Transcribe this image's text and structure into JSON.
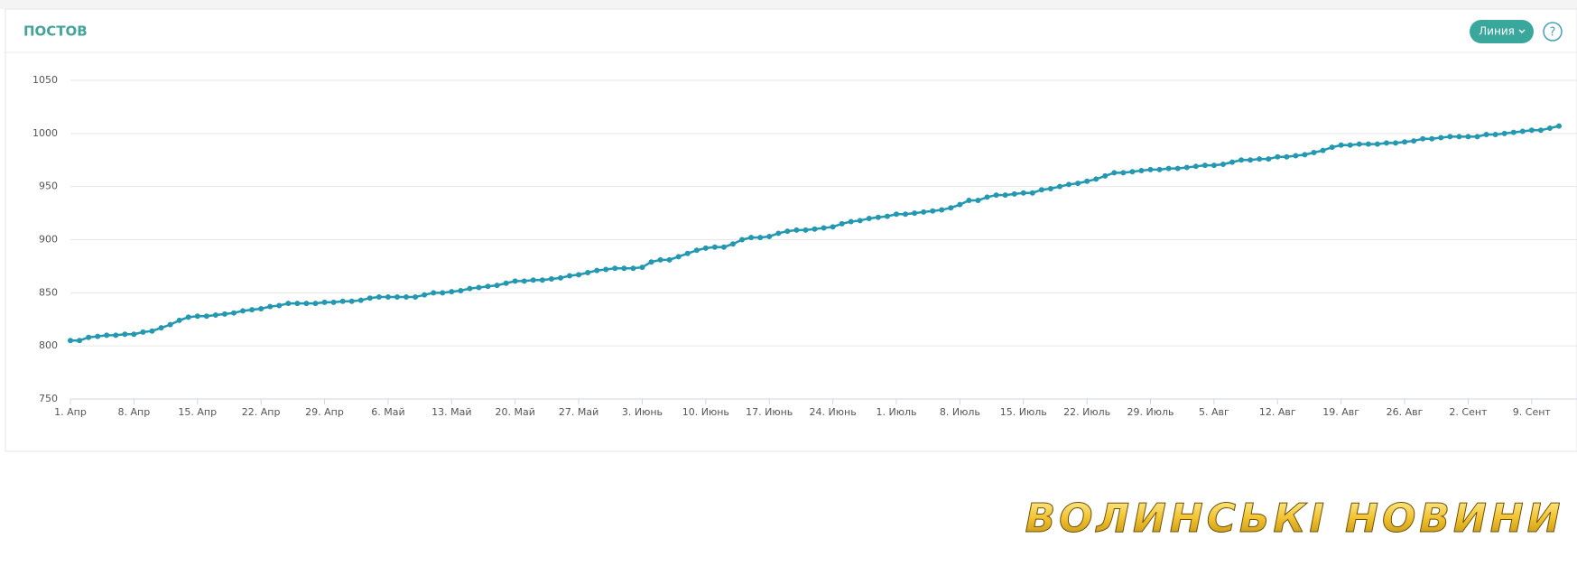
{
  "chart_data": {
    "type": "line",
    "title": "ПОСТОВ",
    "categories": [
      "1. Апр",
      null,
      null,
      null,
      null,
      null,
      null,
      "8. Апр",
      null,
      null,
      null,
      null,
      null,
      null,
      "15. Апр",
      null,
      null,
      null,
      null,
      null,
      null,
      "22. Апр",
      null,
      null,
      null,
      null,
      null,
      null,
      "29. Апр",
      null,
      null,
      null,
      null,
      null,
      null,
      "6. Май",
      null,
      null,
      null,
      null,
      null,
      null,
      "13. Май",
      null,
      null,
      null,
      null,
      null,
      null,
      "20. Май",
      null,
      null,
      null,
      null,
      null,
      null,
      "27. Май",
      null,
      null,
      null,
      null,
      null,
      null,
      "3. Июнь",
      null,
      null,
      null,
      null,
      null,
      null,
      "10. Июнь",
      null,
      null,
      null,
      null,
      null,
      null,
      "17. Июнь",
      null,
      null,
      null,
      null,
      null,
      null,
      "24. Июнь",
      null,
      null,
      null,
      null,
      null,
      null,
      "1. Июль",
      null,
      null,
      null,
      null,
      null,
      null,
      "8. Июль",
      null,
      null,
      null,
      null,
      null,
      null,
      "15. Июль",
      null,
      null,
      null,
      null,
      null,
      null,
      "22. Июль",
      null,
      null,
      null,
      null,
      null,
      null,
      "29. Июль",
      null,
      null,
      null,
      null,
      null,
      null,
      "5. Авг",
      null,
      null,
      null,
      null,
      null,
      null,
      "12. Авг",
      null,
      null,
      null,
      null,
      null,
      null,
      "19. Авг",
      null,
      null,
      null,
      null,
      null,
      null,
      "26. Авг",
      null,
      null,
      null,
      null,
      null,
      null,
      "2. Сент",
      null,
      null,
      null,
      null,
      null,
      null,
      "9. Сент",
      null,
      null,
      null
    ],
    "values": [
      805,
      805,
      808,
      809,
      810,
      810,
      811,
      811,
      813,
      814,
      817,
      820,
      824,
      827,
      828,
      828,
      829,
      830,
      831,
      833,
      834,
      835,
      837,
      838,
      840,
      840,
      840,
      840,
      841,
      841,
      842,
      842,
      843,
      845,
      846,
      846,
      846,
      846,
      846,
      848,
      850,
      850,
      851,
      852,
      854,
      855,
      856,
      857,
      859,
      861,
      861,
      862,
      862,
      863,
      864,
      866,
      867,
      869,
      871,
      872,
      873,
      873,
      873,
      874,
      879,
      881,
      881,
      884,
      887,
      890,
      892,
      893,
      893,
      896,
      900,
      902,
      902,
      903,
      906,
      908,
      909,
      909,
      910,
      911,
      912,
      915,
      917,
      918,
      920,
      921,
      922,
      924,
      924,
      925,
      926,
      927,
      928,
      930,
      933,
      937,
      937,
      940,
      942,
      942,
      943,
      944,
      944,
      947,
      948,
      950,
      952,
      953,
      955,
      957,
      960,
      963,
      963,
      964,
      965,
      966,
      966,
      967,
      967,
      968,
      969,
      970,
      970,
      971,
      973,
      975,
      975,
      976,
      976,
      978,
      978,
      979,
      980,
      982,
      984,
      987,
      989,
      989,
      990,
      990,
      990,
      991,
      991,
      992,
      993,
      995,
      995,
      996,
      997,
      997,
      997,
      997,
      999,
      999,
      1000,
      1001,
      1002,
      1003,
      1003,
      1005,
      1007
    ],
    "color": "#2398b0",
    "ylim": [
      750,
      1050
    ],
    "yticks": [
      750,
      800,
      850,
      900,
      950,
      1000,
      1050
    ],
    "grid": true
  },
  "button_label": "Линия",
  "help_icon": "?",
  "watermark": "ВОЛИНСЬКІ НОВИНИ"
}
